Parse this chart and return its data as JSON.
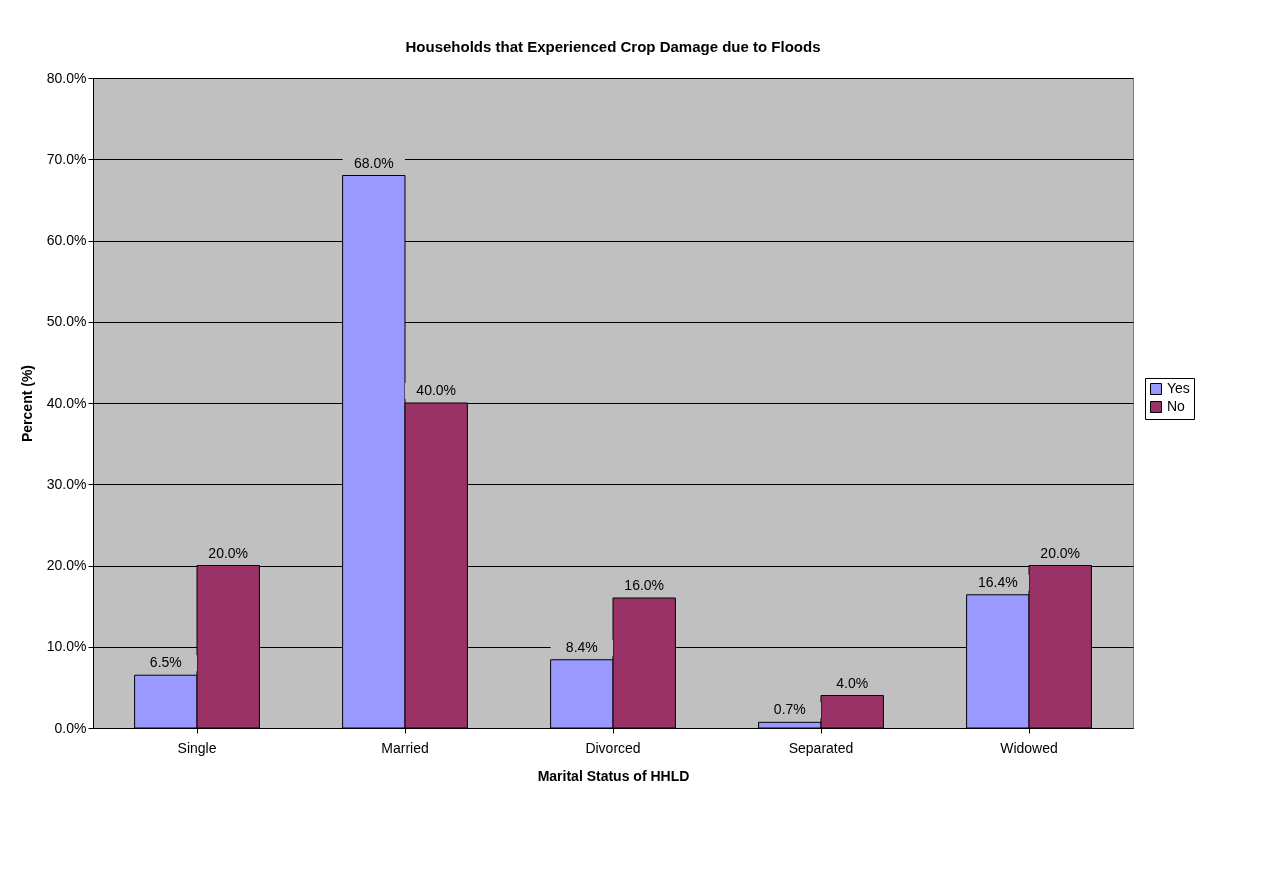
{
  "chart_data": {
    "type": "bar",
    "title": "Households that Experienced Crop Damage due to Floods",
    "xlabel": "Marital Status of HHLD",
    "ylabel": "Percent (%)",
    "categories": [
      "Single",
      "Married",
      "Divorced",
      "Separated",
      "Widowed"
    ],
    "series": [
      {
        "name": "Yes",
        "color": "#9999ff",
        "values": [
          6.5,
          68.0,
          8.4,
          0.7,
          16.4
        ],
        "value_labels": [
          "6.5%",
          "68.0%",
          "8.4%",
          "0.7%",
          "16.4%"
        ]
      },
      {
        "name": "No",
        "color": "#993366",
        "values": [
          20.0,
          40.0,
          16.0,
          4.0,
          20.0
        ],
        "value_labels": [
          "20.0%",
          "40.0%",
          "16.0%",
          "4.0%",
          "20.0%"
        ]
      }
    ],
    "ylim": [
      0,
      80
    ],
    "yticks": [
      {
        "value": 0,
        "label": "0.0%"
      },
      {
        "value": 10,
        "label": "10.0%"
      },
      {
        "value": 20,
        "label": "20.0%"
      },
      {
        "value": 30,
        "label": "30.0%"
      },
      {
        "value": 40,
        "label": "40.0%"
      },
      {
        "value": 50,
        "label": "50.0%"
      },
      {
        "value": 60,
        "label": "60.0%"
      },
      {
        "value": 70,
        "label": "70.0%"
      },
      {
        "value": 80,
        "label": "80.0%"
      }
    ],
    "grid": "y",
    "legend": "right"
  }
}
